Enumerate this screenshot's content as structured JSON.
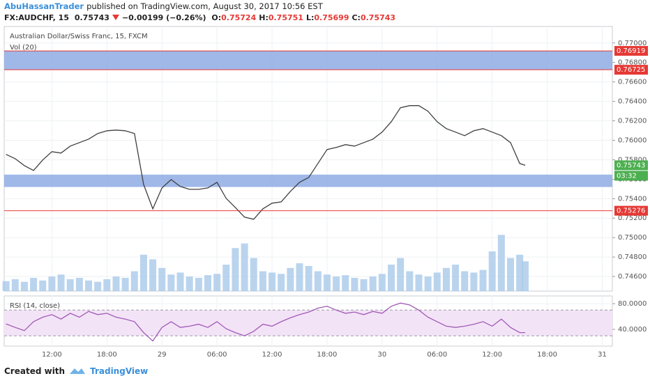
{
  "header": {
    "author": "AbuHassanTrader",
    "published": "published on TradingView.com, August 30, 2017 10:56 EST",
    "symbol": "FX:AUDCHF, 15",
    "last": "0.75743",
    "change": "−0.00199 (−0.26%)",
    "ohlc": [
      {
        "key": "O:",
        "value": "0.75724"
      },
      {
        "key": "H:",
        "value": "0.75751"
      },
      {
        "key": "L:",
        "value": "0.75699"
      },
      {
        "key": "C:",
        "value": "0.75743"
      }
    ]
  },
  "footer": {
    "created": "Created with",
    "brand": "TradingView"
  },
  "chart_data": [
    {
      "type": "line",
      "x": [
        -17,
        -16,
        -15,
        -14,
        -13,
        -12,
        -11,
        -10,
        -9,
        -8,
        -7,
        -6,
        -5,
        -4,
        -3,
        -2,
        -1,
        0,
        1,
        2,
        3,
        4,
        5,
        6,
        7,
        8,
        9,
        10,
        11,
        12,
        13,
        14,
        15,
        16,
        17,
        18,
        19,
        20,
        21,
        22,
        23,
        24,
        25,
        26,
        27,
        28,
        29,
        30,
        31,
        32,
        33,
        34,
        35,
        36,
        37,
        38,
        39,
        39.6
      ],
      "xlim": [
        -17.2,
        49.1
      ],
      "xticks": [
        {
          "value": -12,
          "label": "12:00"
        },
        {
          "value": -6,
          "label": "18:00"
        },
        {
          "value": 0,
          "label": "29"
        },
        {
          "value": 6,
          "label": "06:00"
        },
        {
          "value": 12,
          "label": "12:00"
        },
        {
          "value": 18,
          "label": "18:00"
        },
        {
          "value": 24,
          "label": "30"
        },
        {
          "value": 30,
          "label": "06:00"
        },
        {
          "value": 36,
          "label": "12:00"
        },
        {
          "value": 42,
          "label": "18:00"
        },
        {
          "value": 48,
          "label": "31"
        }
      ],
      "ylim": [
        0.7445,
        0.7717
      ],
      "yticks": [
        {
          "value": 0.746,
          "label": "0.74600"
        },
        {
          "value": 0.748,
          "label": "0.74800"
        },
        {
          "value": 0.75,
          "label": "0.75000"
        },
        {
          "value": 0.752,
          "label": "0.75200"
        },
        {
          "value": 0.754,
          "label": "0.75400"
        },
        {
          "value": 0.756,
          "label": "0.75600"
        },
        {
          "value": 0.758,
          "label": "0.75800"
        },
        {
          "value": 0.76,
          "label": "0.76000"
        },
        {
          "value": 0.762,
          "label": "0.76200"
        },
        {
          "value": 0.764,
          "label": "0.76400"
        },
        {
          "value": 0.766,
          "label": "0.76600"
        },
        {
          "value": 0.768,
          "label": "0.76800"
        },
        {
          "value": 0.77,
          "label": "0.77000"
        }
      ],
      "y2lim": [
        0,
        400
      ],
      "grid": true,
      "series": [
        {
          "name": "Australian Dollar/Swiss Franc, 15, FXCM",
          "color": "#3f3f3f",
          "values": [
            0.75855,
            0.75811,
            0.7574,
            0.7569,
            0.75797,
            0.75883,
            0.75869,
            0.7594,
            0.75976,
            0.76012,
            0.7607,
            0.76098,
            0.76105,
            0.76098,
            0.7607,
            0.75546,
            0.75295,
            0.7551,
            0.75596,
            0.75525,
            0.75496,
            0.75496,
            0.7551,
            0.75568,
            0.75403,
            0.7531,
            0.7521,
            0.75188,
            0.75295,
            0.75353,
            0.75367,
            0.75475,
            0.75568,
            0.75618,
            0.75761,
            0.75905,
            0.75926,
            0.75955,
            0.7594,
            0.75976,
            0.76012,
            0.76084,
            0.76191,
            0.76335,
            0.76356,
            0.76356,
            0.76299,
            0.76191,
            0.7612,
            0.76084,
            0.76048,
            0.76098,
            0.7612,
            0.76084,
            0.76048,
            0.75976,
            0.75761,
            0.75743
          ]
        },
        {
          "name": "Vol (20)",
          "type": "bar",
          "axis": "y2",
          "color": "#a9c9ea",
          "values": [
            15,
            18,
            14,
            20,
            16,
            22,
            25,
            18,
            20,
            16,
            14,
            18,
            22,
            20,
            30,
            55,
            48,
            35,
            25,
            28,
            22,
            20,
            24,
            26,
            40,
            65,
            72,
            50,
            30,
            28,
            26,
            35,
            42,
            38,
            30,
            25,
            22,
            24,
            20,
            18,
            22,
            26,
            40,
            50,
            30,
            25,
            22,
            28,
            35,
            40,
            30,
            28,
            32,
            60,
            85,
            50,
            55,
            45
          ]
        }
      ],
      "zones": [
        [
          0.76725,
          0.76919
        ],
        [
          0.7552,
          0.75647
        ]
      ],
      "zone_color": "#8eabe4",
      "hlines": [
        0.76919,
        0.76725,
        0.75276
      ],
      "hline_color": "#e53935",
      "last": 0.75743,
      "countdown": "03:32",
      "last_color": "#4caf50"
    },
    {
      "type": "line",
      "ylim": [
        14,
        92
      ],
      "yticks": [
        {
          "value": 80,
          "label": "80.0000"
        },
        {
          "value": 40,
          "label": "40.0000"
        }
      ],
      "band": [
        30,
        70
      ],
      "band_color": "#f3e3f7",
      "grid": true,
      "series": [
        {
          "name": "RSI (14, close)",
          "color": "#a05bb5",
          "values": [
            48.6,
            43,
            38,
            52,
            59,
            63,
            56,
            65,
            59,
            68,
            63,
            65,
            59,
            56,
            52,
            35,
            22,
            43,
            52,
            43,
            45,
            48,
            43,
            52,
            41,
            35,
            30,
            37,
            48,
            45,
            52,
            58,
            63,
            67,
            73,
            76,
            70,
            65,
            67,
            63,
            68,
            65,
            76,
            81,
            78,
            70,
            59,
            52,
            45,
            43,
            45,
            48,
            52,
            45,
            56,
            43,
            35,
            35
          ]
        }
      ]
    }
  ]
}
